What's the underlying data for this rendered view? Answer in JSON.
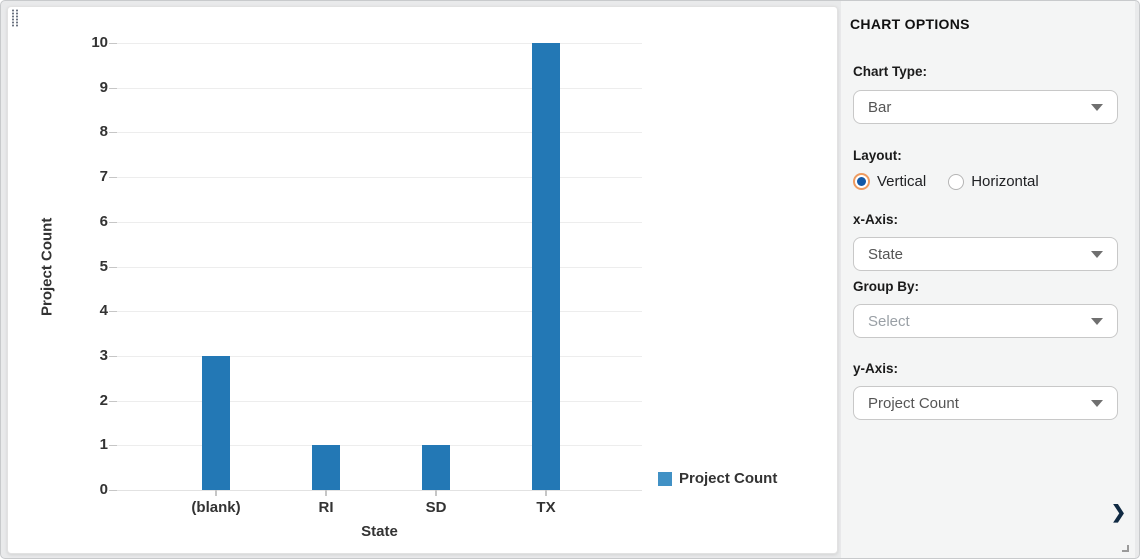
{
  "panel": {
    "title": "CHART OPTIONS",
    "chart_type": {
      "label": "Chart Type:",
      "value": "Bar"
    },
    "layout": {
      "label": "Layout:",
      "options": [
        {
          "label": "Vertical",
          "selected": true
        },
        {
          "label": "Horizontal",
          "selected": false
        }
      ]
    },
    "x_axis": {
      "label": "x-Axis:",
      "value": "State"
    },
    "group_by": {
      "label": "Group By:",
      "value": "Select",
      "is_placeholder": true
    },
    "y_axis": {
      "label": "y-Axis:",
      "value": "Project Count"
    }
  },
  "chart_data": {
    "type": "bar",
    "categories": [
      "(blank)",
      "RI",
      "SD",
      "TX"
    ],
    "values": [
      3,
      1,
      1,
      10
    ],
    "series": [
      {
        "name": "Project Count",
        "values": [
          3,
          1,
          1,
          10
        ]
      }
    ],
    "title": "",
    "xlabel": "State",
    "ylabel": "Project Count",
    "ylim": [
      0,
      10
    ],
    "ytick_step": 1,
    "grid": "horizontal",
    "legend": {
      "label": "Project Count",
      "position": "right-bottom"
    },
    "colors": {
      "bar": "#2378b5",
      "legend_swatch": "#4191c5"
    }
  },
  "icons": {
    "chevron_right": "❯"
  }
}
